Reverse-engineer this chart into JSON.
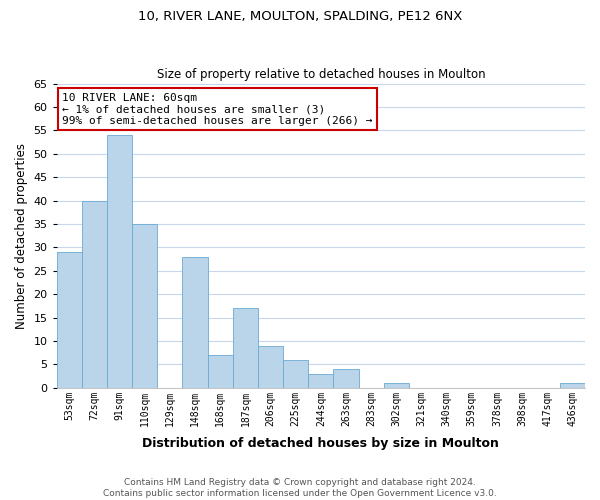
{
  "title1": "10, RIVER LANE, MOULTON, SPALDING, PE12 6NX",
  "title2": "Size of property relative to detached houses in Moulton",
  "xlabel": "Distribution of detached houses by size in Moulton",
  "ylabel": "Number of detached properties",
  "bar_labels": [
    "53sqm",
    "72sqm",
    "91sqm",
    "110sqm",
    "129sqm",
    "148sqm",
    "168sqm",
    "187sqm",
    "206sqm",
    "225sqm",
    "244sqm",
    "263sqm",
    "283sqm",
    "302sqm",
    "321sqm",
    "340sqm",
    "359sqm",
    "378sqm",
    "398sqm",
    "417sqm",
    "436sqm"
  ],
  "bar_values": [
    29,
    40,
    54,
    35,
    0,
    28,
    7,
    17,
    9,
    6,
    3,
    4,
    0,
    1,
    0,
    0,
    0,
    0,
    0,
    0,
    1
  ],
  "bar_color": "#bad4ea",
  "bar_edge_color": "#6aaad4",
  "annotation_box_text": "10 RIVER LANE: 60sqm\n← 1% of detached houses are smaller (3)\n99% of semi-detached houses are larger (266) →",
  "annotation_box_color": "#ffffff",
  "annotation_box_edge_color": "#cc0000",
  "ylim": [
    0,
    65
  ],
  "yticks": [
    0,
    5,
    10,
    15,
    20,
    25,
    30,
    35,
    40,
    45,
    50,
    55,
    60,
    65
  ],
  "footer_line1": "Contains HM Land Registry data © Crown copyright and database right 2024.",
  "footer_line2": "Contains public sector information licensed under the Open Government Licence v3.0.",
  "background_color": "#ffffff",
  "grid_color": "#c8d8ea",
  "fig_width": 6.0,
  "fig_height": 5.0,
  "dpi": 100
}
